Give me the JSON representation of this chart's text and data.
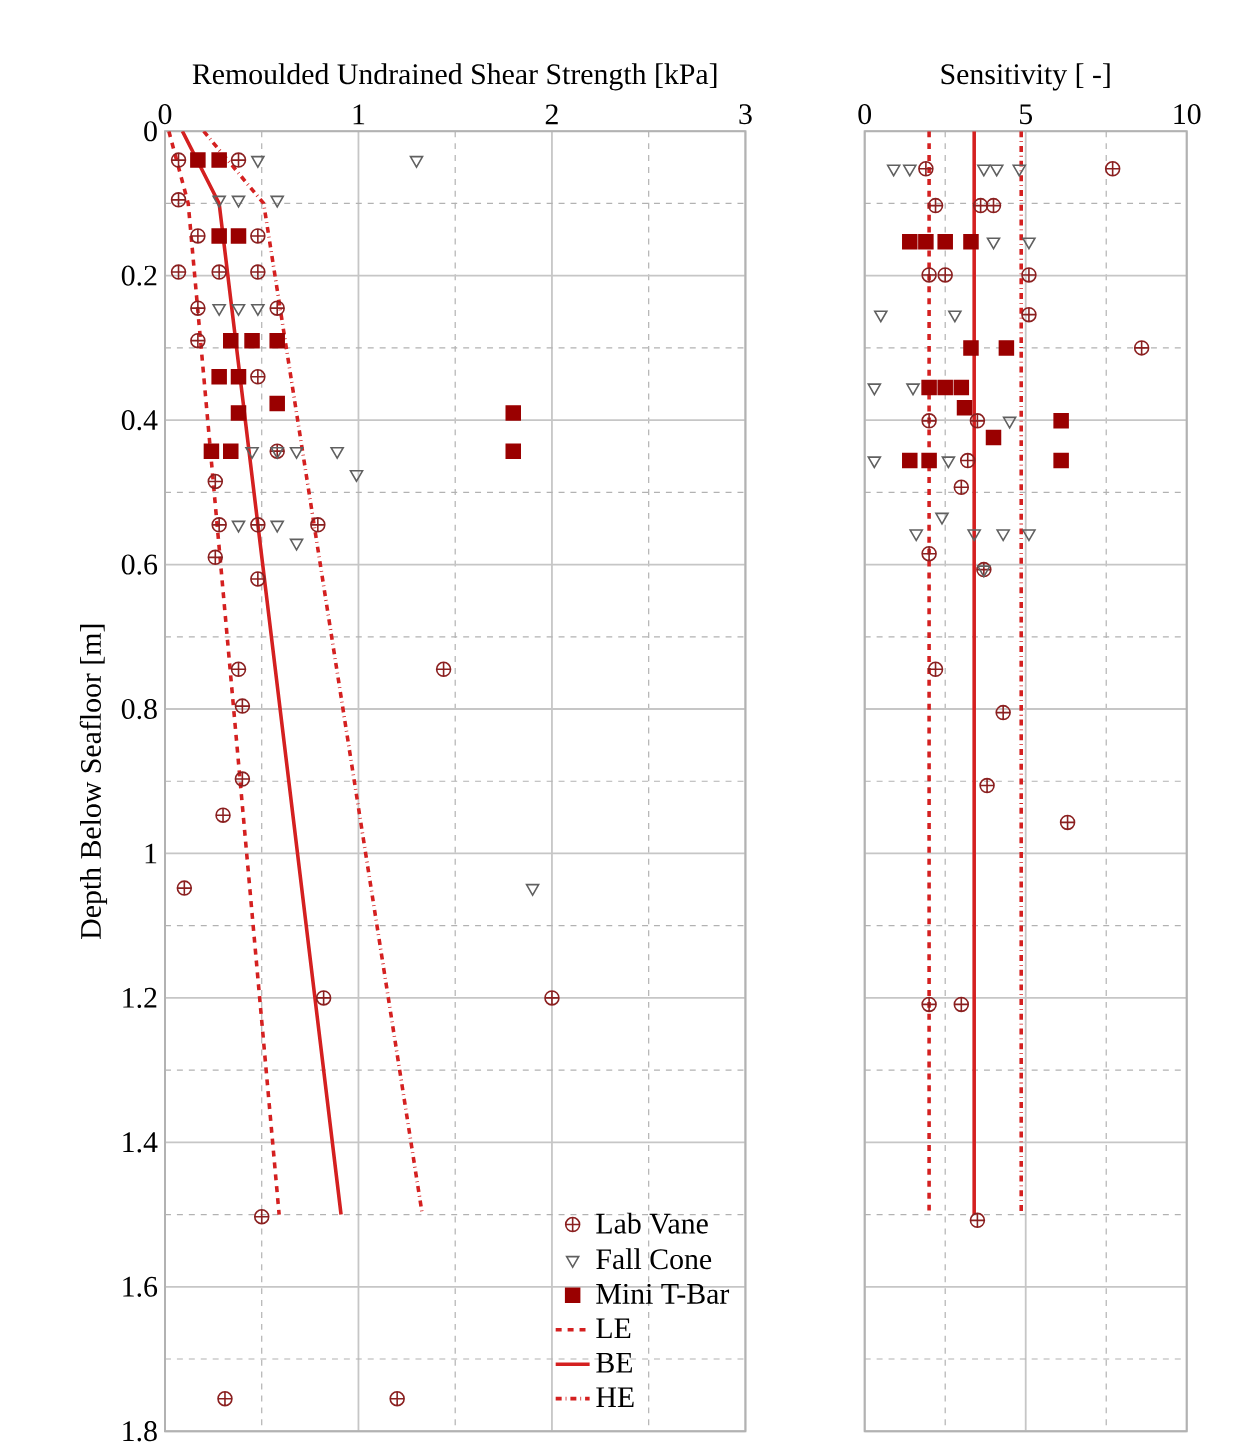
{
  "chart_data": [
    {
      "type": "scatter",
      "xlabel": "Remoulded Undrained Shear Strength [kPa]",
      "ylabel": "Depth Below Seafloor [m]",
      "xlim": [
        0,
        3
      ],
      "xticks": [
        0,
        1,
        2,
        3
      ],
      "ylim": [
        1.8,
        0
      ],
      "yticks": [
        0,
        0.2,
        0.4,
        0.6,
        0.8,
        1,
        1.2,
        1.4,
        1.6,
        1.8
      ],
      "grid": true,
      "legend": "bottom right",
      "series": [
        {
          "name": "Lab Vane",
          "type": "scatter",
          "marker": "cross",
          "color": "#8b2020",
          "x": [
            0.07,
            0.38,
            0.07,
            0.17,
            0.48,
            0.07,
            0.28,
            0.48,
            0.17,
            0.58,
            0.17,
            0.48,
            0.58,
            0.26,
            0.28,
            0.48,
            0.79,
            0.26,
            0.48,
            0.38,
            1.44,
            0.4,
            0.4,
            0.3,
            0.1,
            0.82,
            2.0,
            0.5,
            0.31,
            1.2
          ],
          "values": [
            0.04,
            0.04,
            0.095,
            0.145,
            0.145,
            0.195,
            0.195,
            0.195,
            0.245,
            0.245,
            0.29,
            0.34,
            0.443,
            0.485,
            0.545,
            0.545,
            0.545,
            0.59,
            0.62,
            0.745,
            0.745,
            0.796,
            0.897,
            0.947,
            1.048,
            1.2,
            1.2,
            1.503,
            1.755,
            1.755
          ]
        },
        {
          "name": "Fall Cone",
          "type": "scatter",
          "marker": "triangle",
          "color": "#606060",
          "x": [
            0.48,
            1.3,
            0.28,
            0.38,
            0.58,
            0.28,
            0.38,
            0.48,
            0.45,
            0.58,
            0.68,
            0.89,
            0.99,
            0.38,
            0.58,
            0.68,
            1.9
          ],
          "values": [
            0.04,
            0.04,
            0.095,
            0.095,
            0.095,
            0.245,
            0.245,
            0.245,
            0.443,
            0.443,
            0.443,
            0.443,
            0.475,
            0.545,
            0.545,
            0.57,
            1.048
          ]
        },
        {
          "name": "Mini T-Bar",
          "type": "scatter",
          "marker": "square",
          "color": "#9a0000",
          "x": [
            0.17,
            0.28,
            0.28,
            0.38,
            0.34,
            0.45,
            0.58,
            0.28,
            0.38,
            0.58,
            0.38,
            1.8,
            0.24,
            0.34,
            1.8
          ],
          "values": [
            0.04,
            0.04,
            0.145,
            0.145,
            0.29,
            0.29,
            0.29,
            0.34,
            0.34,
            0.377,
            0.39,
            0.39,
            0.443,
            0.443,
            0.443
          ]
        },
        {
          "name": "LE",
          "type": "line",
          "line_style": "dashed",
          "color": "#d42020",
          "x": [
            0.02,
            0.12,
            0.59
          ],
          "values": [
            0,
            0.1,
            1.5
          ]
        },
        {
          "name": "BE",
          "type": "line",
          "line_style": "solid",
          "color": "#d42020",
          "x": [
            0.09,
            0.28,
            0.91
          ],
          "values": [
            0,
            0.1,
            1.5
          ]
        },
        {
          "name": "HE",
          "type": "line",
          "line_style": "dashdot",
          "color": "#d42020",
          "x": [
            0.2,
            0.51,
            1.33
          ],
          "values": [
            0,
            0.1,
            1.5
          ]
        }
      ]
    },
    {
      "type": "scatter",
      "xlabel": "Sensitivity [ -]",
      "xlim": [
        0,
        10
      ],
      "xticks": [
        0,
        5,
        10
      ],
      "ylim": [
        1.8,
        0
      ],
      "yticks": [
        0,
        0.2,
        0.4,
        0.6,
        0.8,
        1,
        1.2,
        1.4,
        1.6,
        1.8
      ],
      "grid": true,
      "tick_labels": "x",
      "series": [
        {
          "type": "scatter",
          "marker": "cross",
          "color": "#8b2020",
          "x": [
            1.9,
            7.7,
            2.2,
            3.6,
            4.0,
            2.0,
            2.5,
            5.1,
            5.1,
            8.6,
            3.5,
            2.0,
            3.2,
            3.0,
            2.0,
            3.7,
            2.2,
            4.3,
            3.8,
            6.3,
            2.0,
            3.0,
            3.5
          ],
          "values": [
            0.052,
            0.052,
            0.103,
            0.103,
            0.103,
            0.199,
            0.199,
            0.199,
            0.254,
            0.3,
            0.401,
            0.401,
            0.456,
            0.493,
            0.585,
            0.607,
            0.745,
            0.805,
            0.906,
            0.957,
            1.209,
            1.209,
            1.508
          ]
        },
        {
          "type": "scatter",
          "marker": "triangle",
          "color": "#606060",
          "x": [
            0.9,
            1.4,
            3.7,
            4.1,
            4.8,
            4.0,
            5.1,
            0.5,
            2.8,
            0.3,
            1.5,
            4.5,
            0.3,
            2.6,
            2.4,
            1.6,
            3.4,
            4.3,
            5.1,
            3.7
          ],
          "values": [
            0.052,
            0.052,
            0.052,
            0.052,
            0.052,
            0.153,
            0.153,
            0.254,
            0.254,
            0.355,
            0.355,
            0.401,
            0.456,
            0.456,
            0.534,
            0.557,
            0.557,
            0.557,
            0.557,
            0.607
          ]
        },
        {
          "type": "scatter",
          "marker": "square",
          "color": "#9a0000",
          "x": [
            1.4,
            1.9,
            2.5,
            3.3,
            3.3,
            4.4,
            2.0,
            2.5,
            3.0,
            3.1,
            4.0,
            1.4,
            2.0,
            6.1,
            6.1
          ],
          "values": [
            0.153,
            0.153,
            0.153,
            0.153,
            0.3,
            0.3,
            0.355,
            0.355,
            0.355,
            0.383,
            0.424,
            0.456,
            0.456,
            0.401,
            0.456
          ]
        },
        {
          "type": "line",
          "line_style": "dashed",
          "color": "#d42020",
          "x": [
            2.0,
            2.0
          ],
          "values": [
            0,
            1.5
          ]
        },
        {
          "type": "line",
          "line_style": "solid",
          "color": "#d42020",
          "x": [
            3.4,
            3.4
          ],
          "values": [
            0,
            1.5
          ]
        },
        {
          "type": "line",
          "line_style": "dashdot",
          "color": "#d42020",
          "x": [
            4.86,
            4.86
          ],
          "values": [
            0,
            1.5
          ]
        }
      ]
    }
  ]
}
